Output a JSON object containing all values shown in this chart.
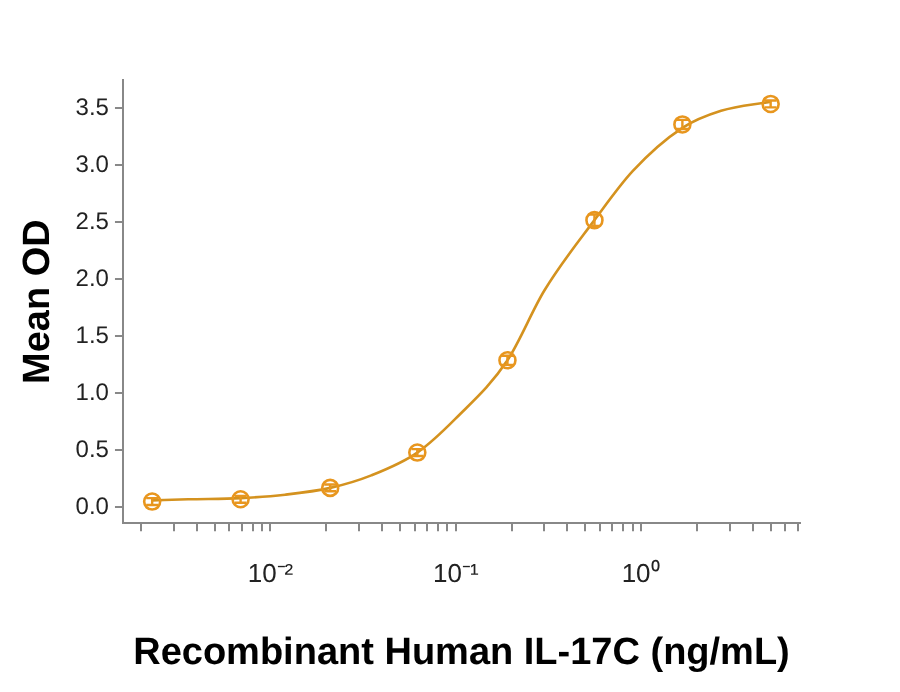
{
  "chart_data": {
    "type": "scatter",
    "xlabel": "Recombinant Human IL-17C (ng/mL)",
    "ylabel": "Mean OD",
    "log": "x",
    "grid": false,
    "legend": false,
    "marker": "circle",
    "xlim": [
      0.0016,
      7.2
    ],
    "ylim": [
      -0.14,
      3.75
    ],
    "xticks": [
      {
        "value": 0.002,
        "label": null
      },
      {
        "value": 0.003,
        "label": null
      },
      {
        "value": 0.004,
        "label": null
      },
      {
        "value": 0.005,
        "label": null
      },
      {
        "value": 0.006,
        "label": null
      },
      {
        "value": 0.007,
        "label": null
      },
      {
        "value": 0.008,
        "label": null
      },
      {
        "value": 0.009,
        "label": null
      },
      {
        "value": 0.01,
        "label": "10⁻²"
      },
      {
        "value": 0.02,
        "label": null
      },
      {
        "value": 0.03,
        "label": null
      },
      {
        "value": 0.04,
        "label": null
      },
      {
        "value": 0.05,
        "label": null
      },
      {
        "value": 0.06,
        "label": null
      },
      {
        "value": 0.07,
        "label": null
      },
      {
        "value": 0.08,
        "label": null
      },
      {
        "value": 0.09,
        "label": null
      },
      {
        "value": 0.1,
        "label": "10⁻¹"
      },
      {
        "value": 0.2,
        "label": null
      },
      {
        "value": 0.3,
        "label": null
      },
      {
        "value": 0.4,
        "label": null
      },
      {
        "value": 0.5,
        "label": null
      },
      {
        "value": 0.6,
        "label": null
      },
      {
        "value": 0.7,
        "label": null
      },
      {
        "value": 0.8,
        "label": null
      },
      {
        "value": 0.9,
        "label": null
      },
      {
        "value": 1,
        "label": "10⁰"
      },
      {
        "value": 2,
        "label": null
      },
      {
        "value": 3,
        "label": null
      },
      {
        "value": 4,
        "label": null
      },
      {
        "value": 5,
        "label": null
      },
      {
        "value": 6,
        "label": null
      },
      {
        "value": 7,
        "label": null
      }
    ],
    "yticks": [
      {
        "value": 0,
        "label": "0.0"
      },
      {
        "value": 0.5,
        "label": "0.5"
      },
      {
        "value": 1,
        "label": "1.0"
      },
      {
        "value": 1.5,
        "label": "1.5"
      },
      {
        "value": 2,
        "label": "2.0"
      },
      {
        "value": 2.5,
        "label": "2.5"
      },
      {
        "value": 3,
        "label": "3.0"
      },
      {
        "value": 3.5,
        "label": "3.5"
      }
    ],
    "series": [
      {
        "color": "#e8961e",
        "x": [
          0.0023,
          0.0069,
          0.021,
          0.062,
          0.19,
          0.56,
          1.67,
          5.0
        ],
        "values": [
          0.05,
          0.07,
          0.17,
          0.48,
          1.29,
          2.52,
          3.36,
          3.54
        ],
        "errors": [
          0.03,
          0.03,
          0.03,
          0.03,
          0.04,
          0.05,
          0.04,
          0.03
        ]
      },
      {
        "type": "line",
        "color": "#d4921f",
        "marker": "none",
        "x": [
          0.0023,
          0.0036,
          0.0069,
          0.012,
          0.021,
          0.035,
          0.062,
          0.1,
          0.19,
          0.3,
          0.56,
          0.9,
          1.67,
          2.7,
          5.0
        ],
        "values": [
          0.06,
          0.07,
          0.08,
          0.11,
          0.17,
          0.28,
          0.48,
          0.78,
          1.29,
          1.9,
          2.52,
          2.95,
          3.33,
          3.48,
          3.56
        ]
      }
    ]
  }
}
